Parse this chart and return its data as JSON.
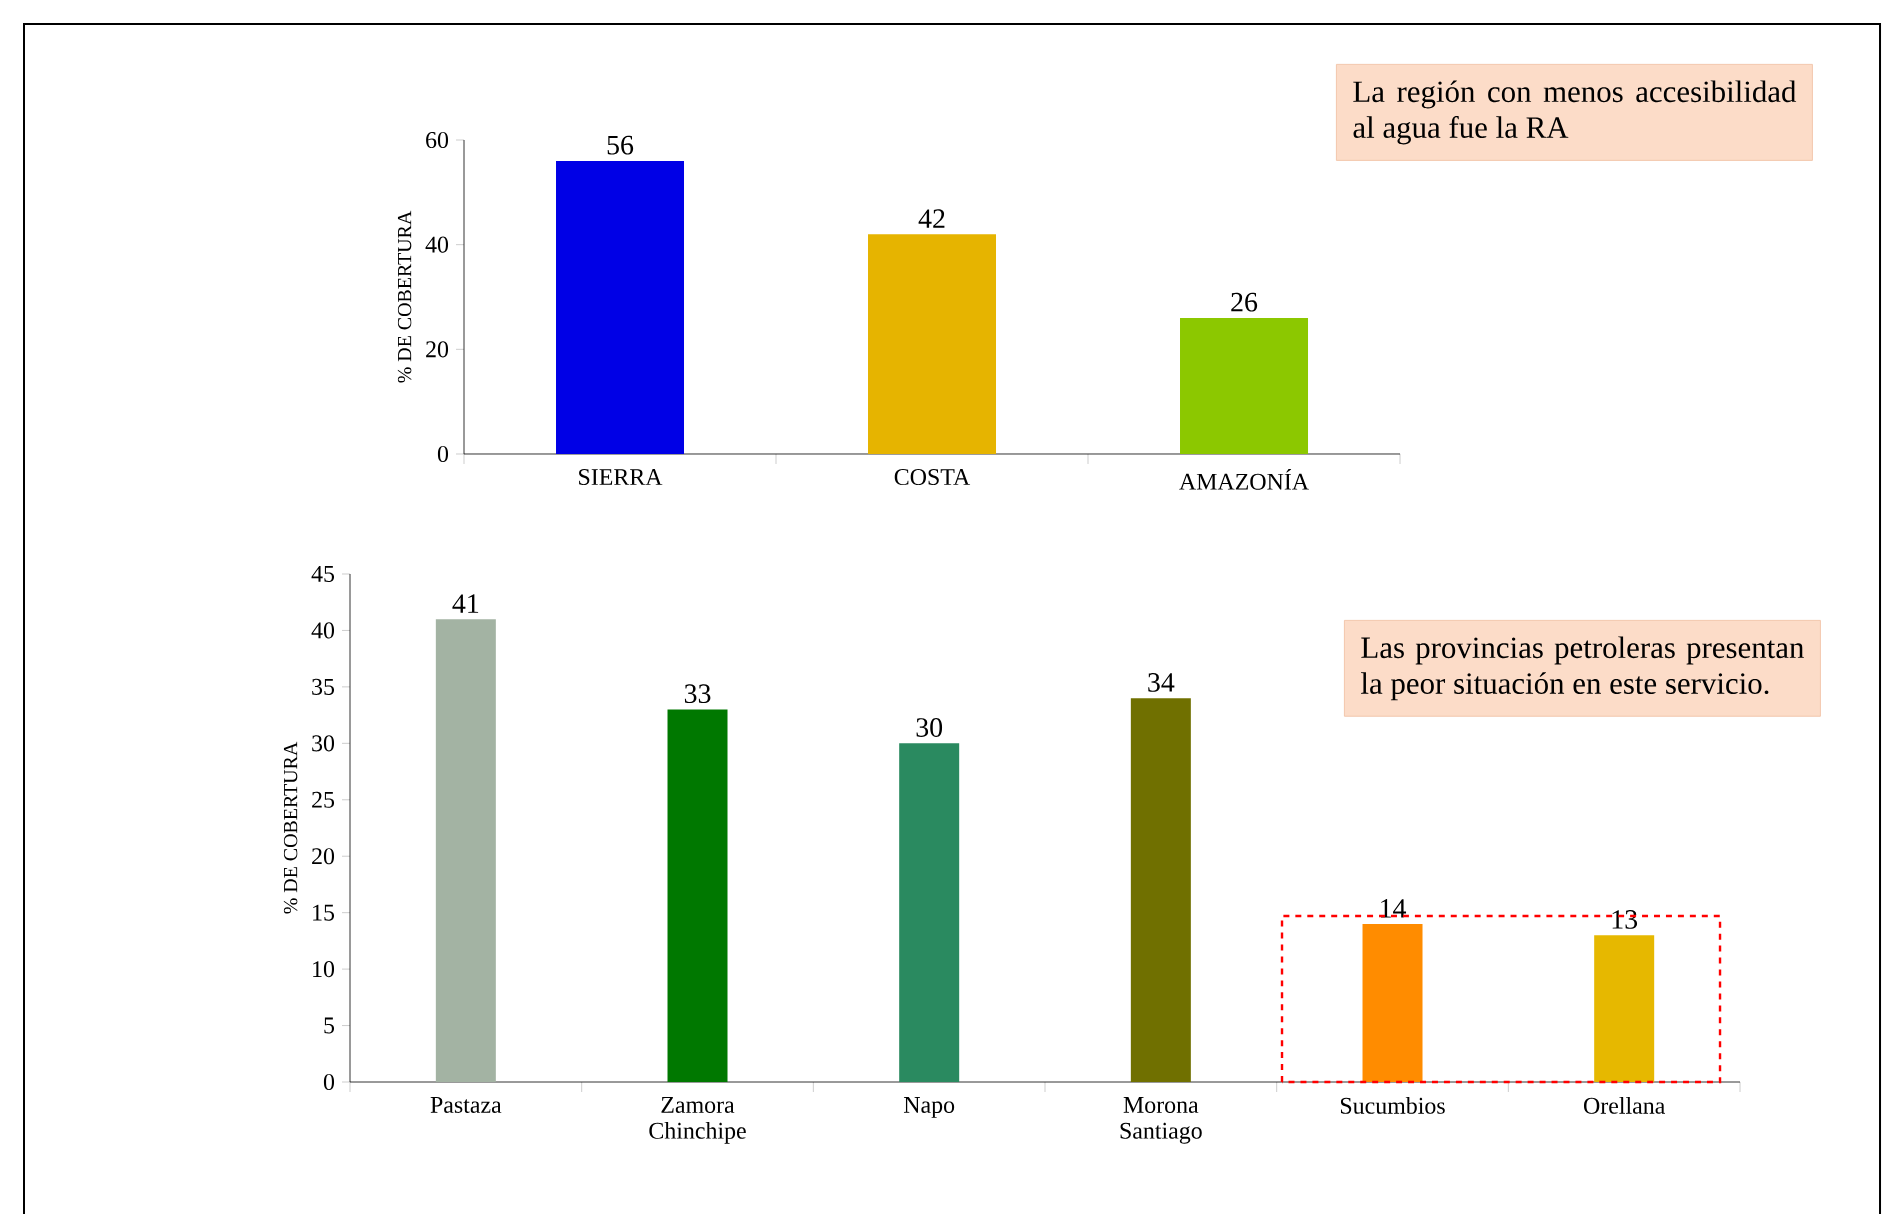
{
  "chart_data": [
    {
      "type": "bar",
      "categories": [
        "SIERRA",
        "COSTA",
        "AMAZONÍA"
      ],
      "values": [
        56,
        42,
        26
      ],
      "colors": [
        "#0000e6",
        "#e6b400",
        "#8cc800"
      ],
      "ylabel": "% DE COBERTURA",
      "ylim": [
        0,
        60
      ],
      "yticks": [
        0,
        20,
        40,
        60
      ],
      "data_labels": true,
      "annotations": [
        "La región con menos accesibilidad al agua fue la RA"
      ]
    },
    {
      "type": "bar",
      "categories": [
        "Pastaza",
        "Zamora Chinchipe",
        "Napo",
        "Morona Santiago",
        "Sucumbios",
        "Orellana"
      ],
      "values": [
        41,
        33,
        30,
        34,
        14,
        13
      ],
      "colors": [
        "#a3b3a3",
        "#007800",
        "#2a8a60",
        "#707000",
        "#ff8c00",
        "#e6b800"
      ],
      "ylabel": "% DE COBERTURA",
      "ylim": [
        0,
        45
      ],
      "yticks": [
        0,
        5,
        10,
        15,
        20,
        25,
        30,
        35,
        40,
        45
      ],
      "data_labels": true,
      "annotations": [
        "Las provincias petroleras presentan la peor situación en este servicio."
      ]
    }
  ]
}
